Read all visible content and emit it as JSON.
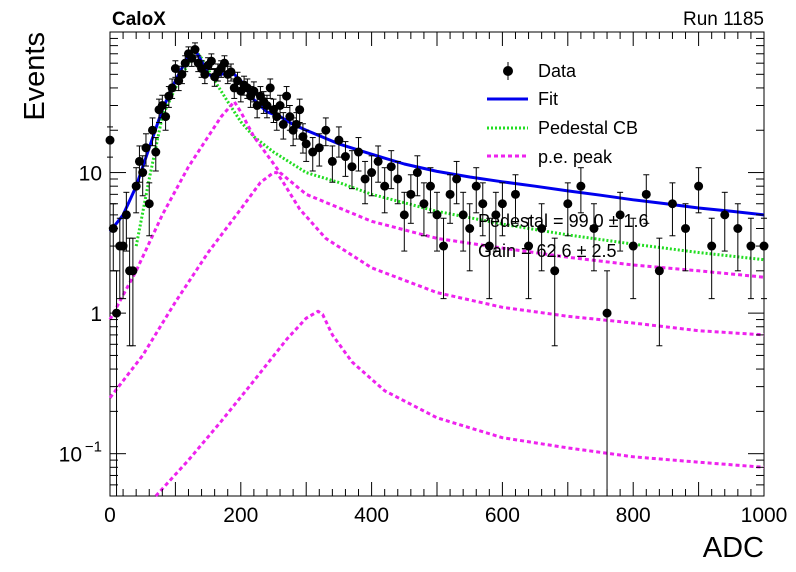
{
  "header": {
    "experiment": "CaloX",
    "run": "Run 1185"
  },
  "chart_data": {
    "type": "scatter",
    "title": "",
    "xlabel": "ADC",
    "ylabel": "Events",
    "xlim": [
      0,
      1000
    ],
    "ylim": [
      0.05,
      100
    ],
    "y_scale": "log",
    "x_ticks": [
      "0",
      "200",
      "400",
      "600",
      "800",
      "1000"
    ],
    "y_ticks": [
      {
        "base": "10",
        "exp": "−1",
        "value": 0.1
      },
      {
        "base": "1",
        "exp": "",
        "value": 1
      },
      {
        "base": "10",
        "exp": "",
        "value": 10
      }
    ],
    "legend_position": "top-right",
    "legend": [
      {
        "label": "Data",
        "style": "marker",
        "color": "#000000"
      },
      {
        "label": "Fit",
        "style": "solid",
        "color": "#0000ee"
      },
      {
        "label": "Pedestal CB",
        "style": "dotted",
        "color": "#22dd22"
      },
      {
        "label": "p.e. peak",
        "style": "dashed",
        "color": "#ee22ee"
      }
    ],
    "annotations": [
      "Pedestal = 99.0 ± 1.6",
      "Gain = 62.6 ± 2.5"
    ],
    "series": [
      {
        "name": "Data",
        "type": "points",
        "x": [
          0,
          5,
          10,
          15,
          20,
          25,
          30,
          35,
          40,
          45,
          50,
          55,
          60,
          65,
          70,
          75,
          80,
          85,
          90,
          95,
          100,
          105,
          110,
          115,
          120,
          125,
          130,
          135,
          140,
          145,
          150,
          155,
          160,
          165,
          170,
          175,
          180,
          185,
          190,
          195,
          200,
          205,
          210,
          215,
          220,
          225,
          230,
          235,
          240,
          245,
          250,
          255,
          260,
          265,
          270,
          275,
          280,
          285,
          290,
          295,
          300,
          310,
          320,
          330,
          340,
          350,
          360,
          370,
          380,
          390,
          400,
          410,
          420,
          430,
          440,
          450,
          460,
          470,
          480,
          490,
          500,
          510,
          520,
          530,
          540,
          550,
          560,
          570,
          580,
          590,
          600,
          620,
          640,
          660,
          680,
          700,
          720,
          740,
          760,
          780,
          800,
          820,
          840,
          860,
          880,
          900,
          920,
          940,
          960,
          980,
          1000
        ],
        "y": [
          17,
          4,
          1,
          3,
          3,
          5,
          2,
          2,
          8,
          12,
          10,
          15,
          6,
          20,
          14,
          28,
          30,
          25,
          35,
          40,
          55,
          45,
          50,
          60,
          70,
          65,
          75,
          60,
          55,
          50,
          58,
          62,
          48,
          52,
          55,
          60,
          50,
          52,
          40,
          45,
          38,
          42,
          40,
          35,
          38,
          30,
          35,
          32,
          30,
          40,
          28,
          25,
          30,
          22,
          35,
          25,
          20,
          22,
          28,
          18,
          16,
          14,
          15,
          20,
          12,
          17,
          13,
          11,
          14,
          9,
          10,
          12,
          8,
          11,
          9,
          5,
          7,
          10,
          6,
          8,
          5,
          3,
          7,
          9,
          5,
          4,
          8,
          6,
          3,
          5,
          6,
          7,
          3,
          4,
          2,
          6,
          8,
          4,
          1,
          5,
          3,
          7,
          2,
          6,
          4,
          8,
          3,
          5,
          4,
          3,
          3
        ]
      },
      {
        "name": "Fit",
        "type": "line",
        "x": [
          0,
          20,
          40,
          60,
          80,
          100,
          120,
          130,
          140,
          150,
          160,
          170,
          180,
          190,
          200,
          220,
          240,
          260,
          280,
          300,
          350,
          400,
          450,
          500,
          550,
          600,
          650,
          700,
          750,
          800,
          850,
          900,
          950,
          1000
        ],
        "y": [
          3.8,
          5,
          8,
          15,
          28,
          45,
          68,
          75,
          62,
          50,
          48,
          50,
          51,
          50,
          45,
          33,
          27,
          25,
          22,
          20,
          16,
          13.5,
          11.5,
          10.2,
          9.3,
          8.6,
          8.0,
          7.4,
          6.9,
          6.4,
          6.0,
          5.6,
          5.3,
          5.0
        ]
      },
      {
        "name": "Pedestal CB",
        "type": "line",
        "x": [
          40,
          60,
          80,
          100,
          120,
          130,
          140,
          160,
          180,
          200,
          220,
          250,
          300,
          350,
          400,
          500,
          600,
          700,
          800,
          900,
          1000
        ],
        "y": [
          3,
          9,
          25,
          40,
          60,
          75,
          65,
          45,
          32,
          23,
          18,
          14,
          10,
          8.5,
          7,
          5.3,
          4.3,
          3.6,
          3.1,
          2.7,
          2.4
        ]
      },
      {
        "name": "p.e. peak 1",
        "type": "line",
        "x": [
          0,
          40,
          80,
          120,
          150,
          170,
          185,
          190,
          200,
          220,
          260,
          300,
          400,
          500,
          600,
          700,
          800,
          900,
          1000
        ],
        "y": [
          0.9,
          2,
          5,
          11,
          18,
          25,
          30,
          32,
          27,
          18,
          10,
          7,
          4.5,
          3.4,
          2.9,
          2.5,
          2.2,
          2.0,
          1.8
        ]
      },
      {
        "name": "p.e. peak 2",
        "type": "line",
        "x": [
          0,
          50,
          100,
          150,
          200,
          230,
          250,
          255,
          265,
          290,
          330,
          400,
          500,
          600,
          700,
          800,
          900,
          1000
        ],
        "y": [
          0.25,
          0.5,
          1.2,
          2.7,
          5.5,
          8.5,
          10,
          10,
          8.5,
          5.5,
          3.4,
          2.1,
          1.4,
          1.1,
          0.95,
          0.85,
          0.75,
          0.7
        ]
      },
      {
        "name": "p.e. peak 3",
        "type": "line",
        "x": [
          70,
          120,
          170,
          220,
          270,
          300,
          318,
          325,
          340,
          370,
          420,
          500,
          600,
          700,
          800,
          900,
          1000
        ],
        "y": [
          0.05,
          0.09,
          0.17,
          0.33,
          0.65,
          0.92,
          1.03,
          0.98,
          0.7,
          0.45,
          0.28,
          0.18,
          0.13,
          0.11,
          0.095,
          0.087,
          0.08
        ]
      }
    ]
  }
}
